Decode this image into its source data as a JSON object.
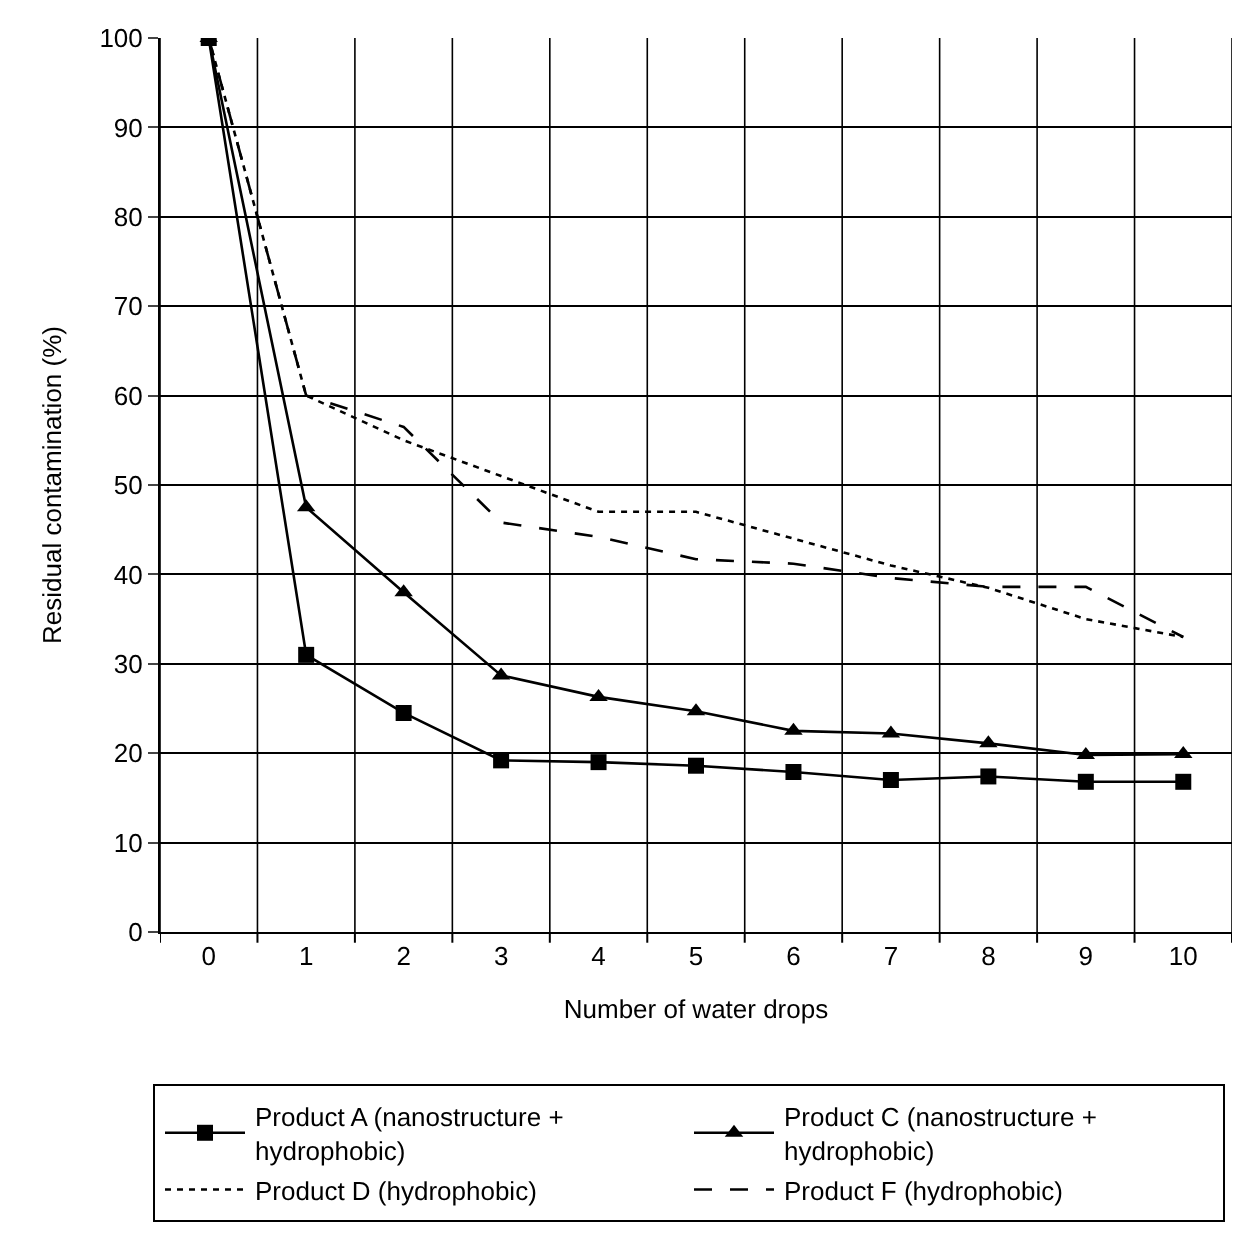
{
  "chart_data": {
    "type": "line",
    "xlabel": "Number of water drops",
    "ylabel": "Residual contamination (%)",
    "categories": [
      "0",
      "1",
      "2",
      "3",
      "4",
      "5",
      "6",
      "7",
      "8",
      "9",
      "10"
    ],
    "ylim": [
      0,
      100
    ],
    "yticks": [
      0,
      10,
      20,
      30,
      40,
      50,
      60,
      70,
      80,
      90,
      100
    ],
    "grid": true,
    "legend": "bottom",
    "series": [
      {
        "name": "Product A (nanostructure + hydrophobic)",
        "color": "#000000",
        "marker": "square",
        "line_style": "solid",
        "values": [
          100,
          31,
          24.5,
          19.2,
          19,
          18.6,
          17.9,
          17,
          17.4,
          16.8,
          16.8
        ]
      },
      {
        "name": "Product C (nanostructure + hydrophobic)",
        "color": "#000000",
        "marker": "triangle",
        "line_style": "solid",
        "values": [
          100,
          47.5,
          38,
          28.7,
          26.3,
          24.7,
          22.5,
          22.2,
          21.1,
          19.8,
          19.9
        ]
      },
      {
        "name": "Product D (hydrophobic)",
        "color": "#000000",
        "marker": "none",
        "line_style": "dotted",
        "values": [
          100,
          60,
          55,
          51,
          47,
          47,
          44,
          41,
          38.5,
          35,
          33
        ]
      },
      {
        "name": "Product F (hydrophobic)",
        "color": "#000000",
        "marker": "none",
        "line_style": "dashed",
        "values": [
          100,
          60,
          56.5,
          45.8,
          44.2,
          41.7,
          41.2,
          39.6,
          38.6,
          38.6,
          33
        ]
      }
    ]
  }
}
